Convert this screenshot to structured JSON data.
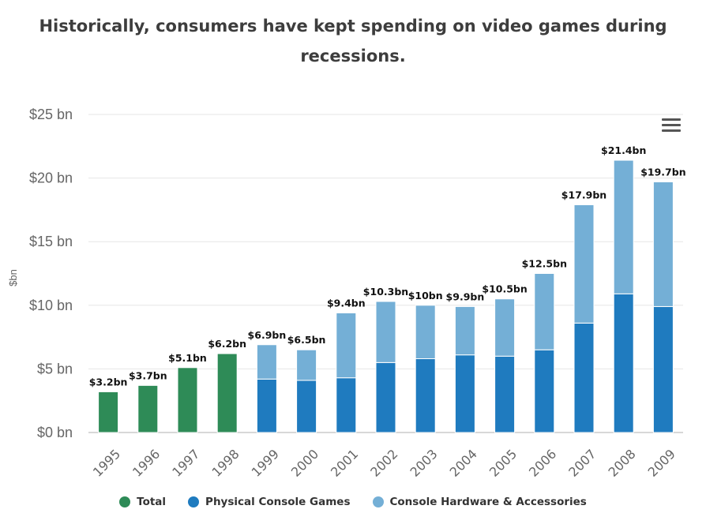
{
  "chart_data": {
    "type": "bar",
    "stacked": true,
    "title": "Historically, consumers have kept spending on video games during recessions.",
    "title_lines": [
      "Historically, consumers have kept spending on video games during",
      "recessions."
    ],
    "xlabel": "",
    "ylabel": "$bn",
    "ylim": [
      0,
      25
    ],
    "yticks": [
      0,
      5,
      10,
      15,
      20,
      25
    ],
    "ytick_labels": [
      "$0 bn",
      "$5 bn",
      "$10 bn",
      "$15 bn",
      "$20 bn",
      "$25 bn"
    ],
    "grid": true,
    "legend_position": "bottom",
    "categories": [
      "1995",
      "1996",
      "1997",
      "1998",
      "1999",
      "2000",
      "2001",
      "2002",
      "2003",
      "2004",
      "2005",
      "2006",
      "2007",
      "2008",
      "2009"
    ],
    "series": [
      {
        "name": "Total",
        "color": "#2e8b57",
        "values": [
          3.2,
          3.7,
          5.1,
          6.2,
          null,
          null,
          null,
          null,
          null,
          null,
          null,
          null,
          null,
          null,
          null
        ]
      },
      {
        "name": "Physical Console Games",
        "color": "#1f7bbf",
        "values": [
          null,
          null,
          null,
          null,
          4.2,
          4.1,
          4.3,
          5.5,
          5.8,
          6.1,
          6.0,
          6.5,
          8.6,
          10.9,
          9.9
        ]
      },
      {
        "name": "Console Hardware & Accessories",
        "color": "#74afd6",
        "values": [
          null,
          null,
          null,
          null,
          2.7,
          2.4,
          5.1,
          4.8,
          4.2,
          3.8,
          4.5,
          6.0,
          9.3,
          10.5,
          9.8
        ]
      }
    ],
    "data_labels": [
      "$3.2bn",
      "$3.7bn",
      "$5.1bn",
      "$6.2bn",
      "$6.9bn",
      "$6.5bn",
      "$9.4bn",
      "$10.3bn",
      "$10bn",
      "$9.9bn",
      "$10.5bn",
      "$12.5bn",
      "$17.9bn",
      "$21.4bn",
      "$19.7bn"
    ],
    "totals": [
      3.2,
      3.7,
      5.1,
      6.2,
      6.9,
      6.5,
      9.4,
      10.3,
      10.0,
      9.9,
      10.5,
      12.5,
      17.9,
      21.4,
      19.7
    ]
  },
  "legend": {
    "items": [
      {
        "label": "Total",
        "color": "#2e8b57"
      },
      {
        "label": "Physical Console Games",
        "color": "#1f7bbf"
      },
      {
        "label": "Console Hardware & Accessories",
        "color": "#74afd6"
      }
    ]
  },
  "menu": {
    "icon": "hamburger-menu-icon"
  }
}
